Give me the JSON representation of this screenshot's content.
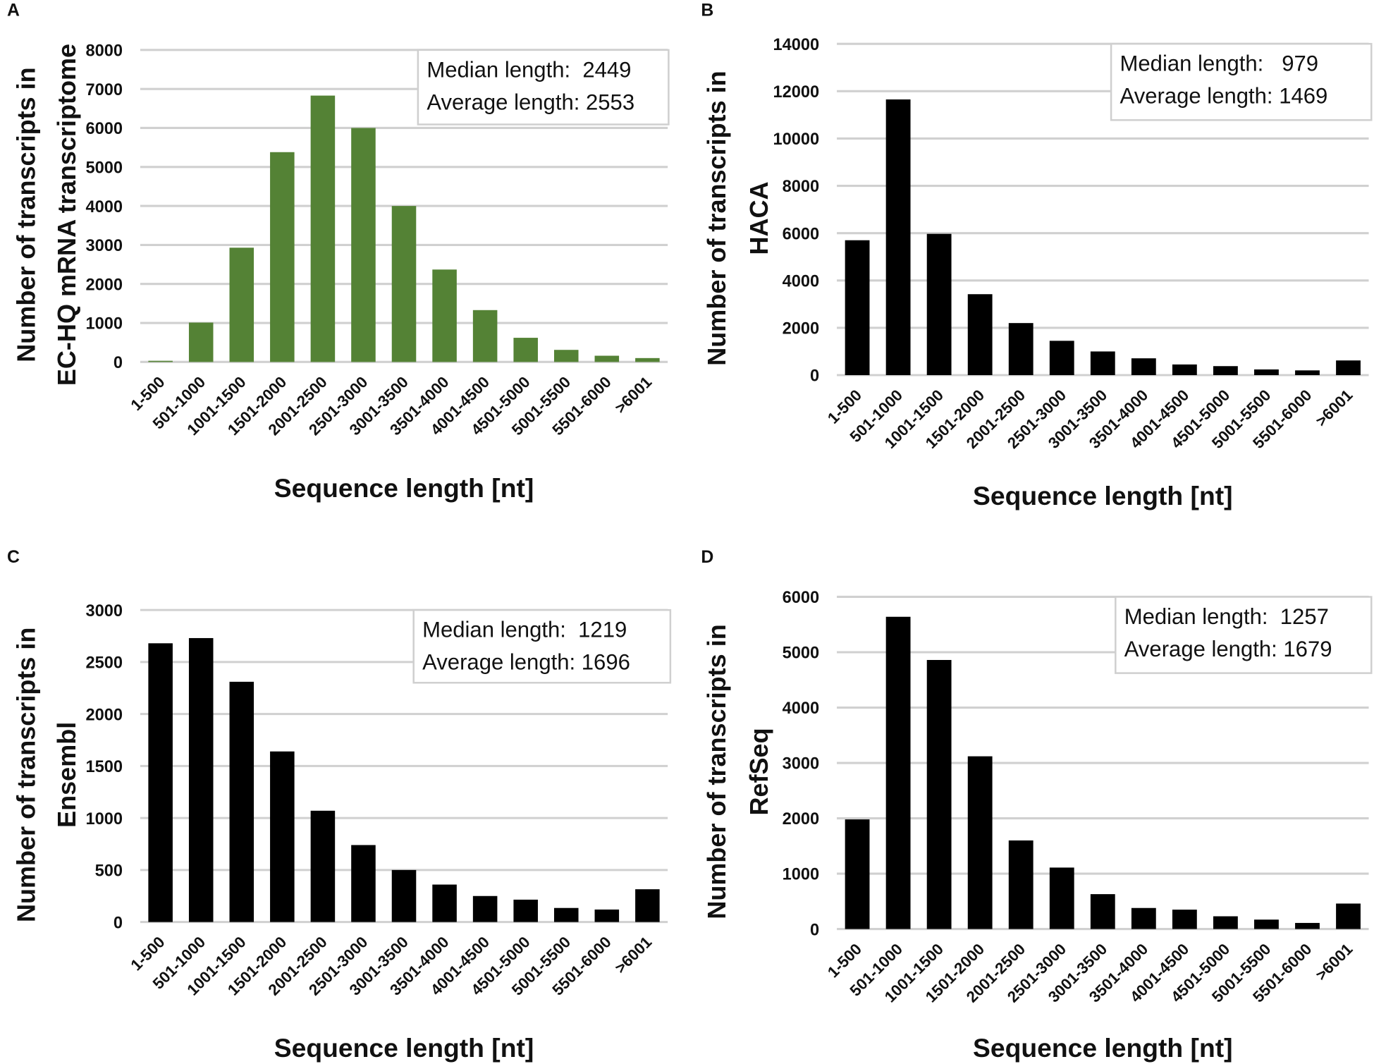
{
  "chart_data": [
    {
      "panel": "A",
      "type": "bar",
      "title": "",
      "xlabel": "Sequence length [nt]",
      "ylabel": [
        "Number of transcripts in",
        "EC-HQ mRNA transcriptome"
      ],
      "categories": [
        "1-500",
        "501-1000",
        "1001-1500",
        "1501-2000",
        "2001-2500",
        "2501-3000",
        "3001-3500",
        "3501-4000",
        "4001-4500",
        "4501-5000",
        "5001-5500",
        "5501-6000",
        ">6001"
      ],
      "values": [
        30,
        1010,
        2930,
        5380,
        6830,
        6000,
        4000,
        2370,
        1330,
        620,
        310,
        160,
        100
      ],
      "ylim": [
        0,
        8000
      ],
      "yticks": [
        0,
        1000,
        2000,
        3000,
        4000,
        5000,
        6000,
        7000,
        8000
      ],
      "grid": true,
      "color": "#548235",
      "annotation": [
        "Median length:  2449",
        "Average length: 2553"
      ],
      "annotation_placement": "top-right"
    },
    {
      "panel": "B",
      "type": "bar",
      "title": "",
      "xlabel": "Sequence length [nt]",
      "ylabel": [
        "Number of transcripts in",
        "HACA"
      ],
      "categories": [
        "1-500",
        "501-1000",
        "1001-1500",
        "1501-2000",
        "2001-2500",
        "2501-3000",
        "3001-3500",
        "3501-4000",
        "4001-4500",
        "4501-5000",
        "5001-5500",
        "5501-6000",
        ">6001"
      ],
      "values": [
        5700,
        11650,
        5970,
        3420,
        2200,
        1450,
        1000,
        710,
        450,
        380,
        240,
        200,
        620
      ],
      "ylim": [
        0,
        14000
      ],
      "yticks": [
        0,
        2000,
        4000,
        6000,
        8000,
        10000,
        12000,
        14000
      ],
      "grid": true,
      "color": "#000000",
      "annotation": [
        "Median length:   979",
        "Average length: 1469"
      ],
      "annotation_placement": "top-right"
    },
    {
      "panel": "C",
      "type": "bar",
      "title": "",
      "xlabel": "Sequence length [nt]",
      "ylabel": [
        "Number of transcripts in",
        "Ensembl"
      ],
      "categories": [
        "1-500",
        "501-1000",
        "1001-1500",
        "1501-2000",
        "2001-2500",
        "2501-3000",
        "3001-3500",
        "3501-4000",
        "4001-4500",
        "4501-5000",
        "5001-5500",
        "5501-6000",
        ">6001"
      ],
      "values": [
        2680,
        2730,
        2310,
        1640,
        1070,
        740,
        500,
        360,
        250,
        215,
        135,
        120,
        315
      ],
      "ylim": [
        0,
        3000
      ],
      "yticks": [
        0,
        500,
        1000,
        1500,
        2000,
        2500,
        3000
      ],
      "grid": true,
      "color": "#000000",
      "annotation": [
        "Median length:  1219",
        "Average length: 1696"
      ],
      "annotation_placement": "top-right"
    },
    {
      "panel": "D",
      "type": "bar",
      "title": "",
      "xlabel": "Sequence length [nt]",
      "ylabel": [
        "Number of transcripts in",
        "RefSeq"
      ],
      "categories": [
        "1-500",
        "501-1000",
        "1001-1500",
        "1501-2000",
        "2001-2500",
        "2501-3000",
        "3001-3500",
        "3501-4000",
        "4001-4500",
        "4501-5000",
        "5001-5500",
        "5501-6000",
        ">6001"
      ],
      "values": [
        1980,
        5640,
        4860,
        3120,
        1600,
        1110,
        630,
        380,
        350,
        230,
        170,
        110,
        460
      ],
      "ylim": [
        0,
        6000
      ],
      "yticks": [
        0,
        1000,
        2000,
        3000,
        4000,
        5000,
        6000
      ],
      "grid": true,
      "color": "#000000",
      "annotation": [
        "Median length:  1257",
        "Average length: 1679"
      ],
      "annotation_placement": "top-right"
    }
  ]
}
